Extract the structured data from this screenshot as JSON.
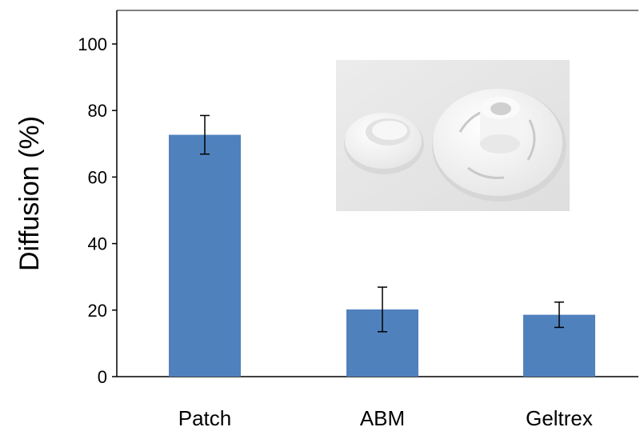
{
  "chart_data": {
    "type": "bar",
    "categories": [
      "Patch",
      "ABM",
      "Geltrex"
    ],
    "values": [
      72.7,
      20.2,
      18.6
    ],
    "error": [
      5.8,
      6.7,
      3.8
    ],
    "title": "",
    "xlabel": "",
    "ylabel": "Diffusion (%)",
    "ylim": [
      0,
      100
    ],
    "yticks": [
      "0",
      "20",
      "40",
      "60",
      "80",
      "100"
    ],
    "grid": false,
    "legend": "none",
    "bar_color": "#4F81BD",
    "error_bar_color": "#000000",
    "inset_image": "photo of two white 3D-printed ring components (small ring and larger disc with cylindrical hub)"
  }
}
